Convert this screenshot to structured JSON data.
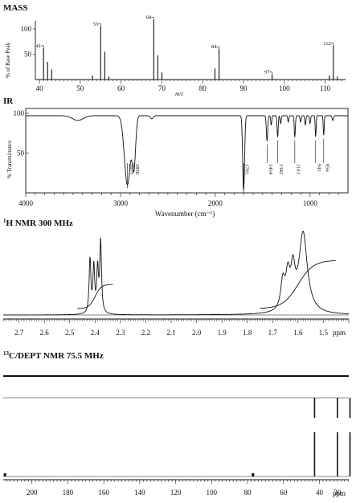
{
  "chart_data": [
    {
      "type": "bar",
      "section_label": "MASS",
      "xlabel": "m/z",
      "ylabel": "% of Base Peak",
      "xlim": [
        39,
        115
      ],
      "ylim": [
        0,
        110
      ],
      "xticks": [
        40,
        50,
        60,
        70,
        80,
        90,
        100,
        110
      ],
      "yticks": [
        50,
        100
      ],
      "peaks": [
        {
          "mz": 41,
          "intensity": 62,
          "label": "41"
        },
        {
          "mz": 42,
          "intensity": 35
        },
        {
          "mz": 43,
          "intensity": 20
        },
        {
          "mz": 53,
          "intensity": 8
        },
        {
          "mz": 55,
          "intensity": 105,
          "label": "55"
        },
        {
          "mz": 56,
          "intensity": 55
        },
        {
          "mz": 57,
          "intensity": 6
        },
        {
          "mz": 68,
          "intensity": 118,
          "label": "68"
        },
        {
          "mz": 69,
          "intensity": 48
        },
        {
          "mz": 70,
          "intensity": 14
        },
        {
          "mz": 83,
          "intensity": 22
        },
        {
          "mz": 84,
          "intensity": 60,
          "label": "84"
        },
        {
          "mz": 97,
          "intensity": 10,
          "label": "97"
        },
        {
          "mz": 111,
          "intensity": 8
        },
        {
          "mz": 112,
          "intensity": 67,
          "label": "112"
        },
        {
          "mz": 113,
          "intensity": 6
        }
      ]
    },
    {
      "type": "line",
      "section_label": "IR",
      "xlabel": "Wavenumber (cm⁻¹)",
      "ylabel": "% Transmittance",
      "xlim": [
        4000,
        600
      ],
      "ylim": [
        0,
        105
      ],
      "xticks": [
        4000,
        3000,
        2000,
        1000
      ],
      "yticks": [
        50,
        100
      ],
      "bands": [
        {
          "wavenumber": 2927,
          "transmittance": 10,
          "label": "2927"
        },
        {
          "wavenumber": 2858,
          "transmittance": 35,
          "label": "2858"
        },
        {
          "wavenumber": 1701,
          "transmittance": 3,
          "label": "1701"
        },
        {
          "wavenumber": 1454,
          "transmittance": 65,
          "label": "1454"
        },
        {
          "wavenumber": 1342,
          "transmittance": 70,
          "label": "1342"
        },
        {
          "wavenumber": 1161,
          "transmittance": 70,
          "label": "1161"
        },
        {
          "wavenumber": 941,
          "transmittance": 70,
          "label": "941"
        },
        {
          "wavenumber": 856,
          "transmittance": 72,
          "label": "856"
        }
      ]
    },
    {
      "type": "line",
      "section_label": "H NMR 300 MHz",
      "section_superscript": "1",
      "xlabel": "ppm",
      "xlim": [
        2.8,
        1.4
      ],
      "xticks": [
        2.7,
        2.6,
        2.5,
        2.4,
        2.3,
        2.2,
        2.1,
        2.0,
        1.9,
        1.8,
        1.7,
        1.6,
        1.5
      ],
      "xtick_labels": [
        "2.7",
        "2.6",
        "2.5",
        "2.4",
        "2.3",
        "2.2",
        "2.1",
        "2.0",
        "1.9",
        "1.8",
        "1.7",
        "1.6",
        "1.5"
      ],
      "signals": [
        {
          "ppm": 2.42,
          "height": 0.68
        },
        {
          "ppm": 2.405,
          "height": 0.58
        },
        {
          "ppm": 2.39,
          "height": 0.54
        },
        {
          "ppm": 2.378,
          "height": 0.9
        },
        {
          "ppm": 1.58,
          "height": 1.0
        },
        {
          "ppm": 1.62,
          "height": 0.45
        },
        {
          "ppm": 1.64,
          "height": 0.4
        },
        {
          "ppm": 1.66,
          "height": 0.35
        }
      ]
    },
    {
      "type": "line",
      "section_label": "C/DEPT NMR 75.5 MHz",
      "section_superscript": "13",
      "xlabel": "ppm",
      "xlim": [
        220,
        25
      ],
      "xticks": [
        200,
        180,
        160,
        140,
        120,
        100,
        80,
        60,
        40
      ],
      "xtick_labels": [
        "200",
        "180",
        "160",
        "140",
        "120",
        "100",
        "80",
        "60",
        "40",
        "30"
      ],
      "extra_tick_label_ppm": 30,
      "signals": [
        {
          "ppm": 215,
          "height": 0.04
        },
        {
          "ppm": 77,
          "height": 0.05
        },
        {
          "ppm": 42.7,
          "height": 0.92
        },
        {
          "ppm": 30.0,
          "height": 0.92
        },
        {
          "ppm": 23.0,
          "height": 0.92
        }
      ]
    }
  ]
}
